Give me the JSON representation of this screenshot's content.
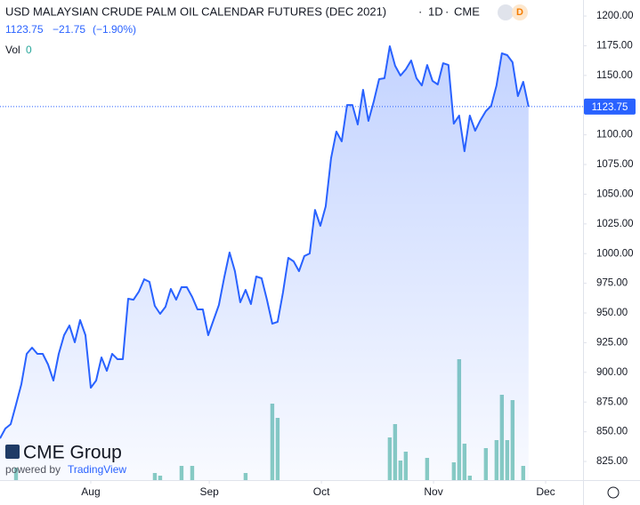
{
  "chart_data": {
    "type": "line",
    "title": "USD MALAYSIAN CRUDE PALM OIL CALENDAR FUTURES (DEC 2021)",
    "interval": "1D",
    "exchange": "CME",
    "badge": "D",
    "legend_values": [
      "1123.75",
      "−21.75",
      "(−1.90%)"
    ],
    "volume_label": "Vol",
    "volume_value": "0",
    "watermark": [
      "CME Group",
      "powered by",
      "TradingView"
    ],
    "last_price": 1123.75,
    "series": [
      {
        "name": "Price",
        "color": "#2962ff",
        "values": [
          844.4,
          852.7,
          856.4,
          872.9,
          890.1,
          915.6,
          920.8,
          915.6,
          915.6,
          906.6,
          893.1,
          915.6,
          931.3,
          939.5,
          925.3,
          944.0,
          931.3,
          887.1,
          893.1,
          912.6,
          901.3,
          915.6,
          911.1,
          911.1,
          962.0,
          961.2,
          968.0,
          978.4,
          976.2,
          956.0,
          949.3,
          955.2,
          970.2,
          961.2,
          971.7,
          971.7,
          963.5,
          953.0,
          953.0,
          931.3,
          944.0,
          956.7,
          979.9,
          1000.9,
          985.2,
          959.0,
          969.5,
          957.5,
          980.7,
          979.2,
          961.2,
          941.0,
          942.5,
          967.2,
          996.4,
          993.4,
          985.2,
          997.9,
          1000.1,
          1036.8,
          1023.4,
          1039.8,
          1080.2,
          1102.7,
          1094.5,
          1125.1,
          1125.1,
          1108.7,
          1137.9,
          1111.7,
          1128.1,
          1146.9,
          1147.6,
          1174.6,
          1158.1,
          1149.9,
          1155.1,
          1162.6,
          1147.6,
          1141.6,
          1158.8,
          1145.4,
          1142.4,
          1160.3,
          1158.8,
          1109.4,
          1116.2,
          1086.2,
          1116.2,
          1103.4,
          1112.4,
          1119.9,
          1124.4,
          1141.6,
          1168.6,
          1167.1,
          1161.1,
          1132.6,
          1144.6,
          1123.75
        ]
      },
      {
        "name": "Volume",
        "color": "#89cdc2",
        "axis": "y2",
        "values": [
          0,
          0,
          0,
          14,
          0,
          0,
          0,
          0,
          0,
          0,
          0,
          0,
          0,
          0,
          0,
          0,
          0,
          0,
          0,
          0,
          0,
          0,
          0,
          0,
          0,
          0,
          0,
          0,
          0,
          8,
          5,
          0,
          0,
          0,
          16,
          0,
          16,
          0,
          0,
          0,
          0,
          0,
          0,
          0,
          0,
          0,
          8,
          0,
          0,
          0,
          0,
          86,
          70,
          0,
          0,
          0,
          0,
          0,
          0,
          0,
          0,
          0,
          0,
          0,
          0,
          0,
          0,
          0,
          0,
          0,
          0,
          0,
          0,
          48,
          63,
          22,
          32,
          0,
          0,
          0,
          25,
          0,
          0,
          0,
          0,
          20,
          136,
          41,
          5,
          0,
          0,
          36,
          0,
          45,
          96,
          45,
          90,
          0,
          16,
          0
        ]
      }
    ],
    "xlim": [
      0,
      109.2
    ],
    "xticks": [
      {
        "value": 17,
        "label": "Aug"
      },
      {
        "value": 39.2,
        "label": "Sep"
      },
      {
        "value": 60.2,
        "label": "Oct"
      },
      {
        "value": 81.2,
        "label": "Nov"
      },
      {
        "value": 102.2,
        "label": "Dec"
      }
    ],
    "ylim": [
      809.3,
      1213.5
    ],
    "yticks": [
      {
        "value": 825,
        "label": "825.00"
      },
      {
        "value": 850,
        "label": "850.00"
      },
      {
        "value": 875,
        "label": "875.00"
      },
      {
        "value": 900,
        "label": "900.00"
      },
      {
        "value": 925,
        "label": "925.00"
      },
      {
        "value": 950,
        "label": "950.00"
      },
      {
        "value": 975,
        "label": "975.00"
      },
      {
        "value": 1000,
        "label": "1000.00"
      },
      {
        "value": 1025,
        "label": "1025.00"
      },
      {
        "value": 1050,
        "label": "1050.00"
      },
      {
        "value": 1075,
        "label": "1075.00"
      },
      {
        "value": 1100,
        "label": "1100.00"
      },
      {
        "value": 1125,
        "label": "1125.00"
      },
      {
        "value": 1150,
        "label": "1150.00"
      },
      {
        "value": 1175,
        "label": "1175.00"
      },
      {
        "value": 1200,
        "label": "1200.00"
      }
    ],
    "y2lim": [
      0,
      150
    ]
  }
}
